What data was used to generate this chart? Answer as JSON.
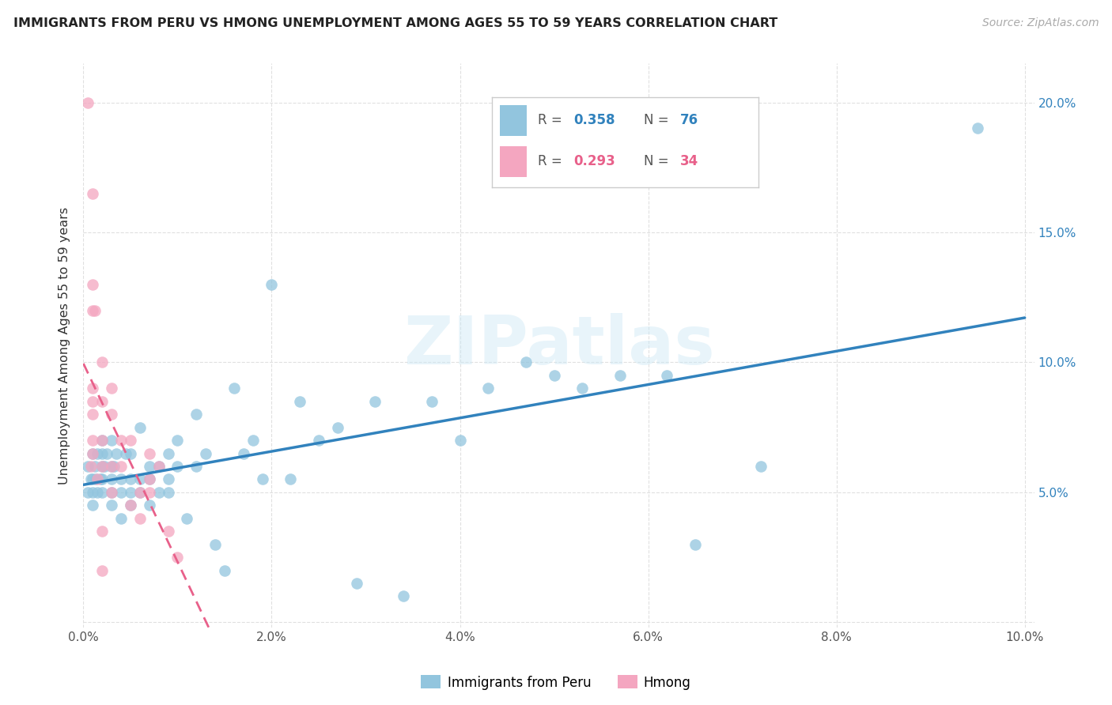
{
  "title": "IMMIGRANTS FROM PERU VS HMONG UNEMPLOYMENT AMONG AGES 55 TO 59 YEARS CORRELATION CHART",
  "source": "Source: ZipAtlas.com",
  "ylabel": "Unemployment Among Ages 55 to 59 years",
  "xlim": [
    0.0,
    0.101
  ],
  "ylim": [
    -0.002,
    0.215
  ],
  "xticks": [
    0.0,
    0.02,
    0.04,
    0.06,
    0.08,
    0.1
  ],
  "yticks": [
    0.0,
    0.05,
    0.1,
    0.15,
    0.2
  ],
  "xtick_labels": [
    "0.0%",
    "2.0%",
    "4.0%",
    "6.0%",
    "8.0%",
    "10.0%"
  ],
  "ytick_labels_right": [
    "",
    "5.0%",
    "10.0%",
    "15.0%",
    "20.0%"
  ],
  "legend_peru_r": "R = 0.358",
  "legend_peru_n": "76",
  "legend_hmong_r": "R = 0.293",
  "legend_hmong_n": "34",
  "peru_color": "#92c5de",
  "hmong_color": "#f4a6c0",
  "peru_line_color": "#3182bd",
  "hmong_line_color": "#e8608a",
  "watermark": "ZIPatlas",
  "peru_x": [
    0.0005,
    0.0005,
    0.0008,
    0.001,
    0.001,
    0.001,
    0.001,
    0.0012,
    0.0013,
    0.0015,
    0.0015,
    0.0018,
    0.002,
    0.002,
    0.002,
    0.002,
    0.002,
    0.0022,
    0.0025,
    0.003,
    0.003,
    0.003,
    0.003,
    0.003,
    0.0032,
    0.0035,
    0.004,
    0.004,
    0.004,
    0.0045,
    0.005,
    0.005,
    0.005,
    0.005,
    0.006,
    0.006,
    0.006,
    0.007,
    0.007,
    0.007,
    0.008,
    0.008,
    0.009,
    0.009,
    0.009,
    0.01,
    0.01,
    0.011,
    0.012,
    0.012,
    0.013,
    0.014,
    0.015,
    0.016,
    0.017,
    0.018,
    0.019,
    0.02,
    0.022,
    0.023,
    0.025,
    0.027,
    0.029,
    0.031,
    0.034,
    0.037,
    0.04,
    0.043,
    0.047,
    0.05,
    0.053,
    0.057,
    0.062,
    0.065,
    0.072,
    0.095
  ],
  "peru_y": [
    0.05,
    0.06,
    0.055,
    0.065,
    0.055,
    0.05,
    0.045,
    0.06,
    0.055,
    0.05,
    0.065,
    0.055,
    0.05,
    0.055,
    0.06,
    0.065,
    0.07,
    0.06,
    0.065,
    0.045,
    0.05,
    0.055,
    0.06,
    0.07,
    0.06,
    0.065,
    0.04,
    0.05,
    0.055,
    0.065,
    0.045,
    0.05,
    0.055,
    0.065,
    0.05,
    0.055,
    0.075,
    0.045,
    0.055,
    0.06,
    0.05,
    0.06,
    0.05,
    0.055,
    0.065,
    0.06,
    0.07,
    0.04,
    0.06,
    0.08,
    0.065,
    0.03,
    0.02,
    0.09,
    0.065,
    0.07,
    0.055,
    0.13,
    0.055,
    0.085,
    0.07,
    0.075,
    0.015,
    0.085,
    0.01,
    0.085,
    0.07,
    0.09,
    0.1,
    0.095,
    0.09,
    0.095,
    0.095,
    0.03,
    0.06,
    0.19
  ],
  "hmong_x": [
    0.0005,
    0.0008,
    0.001,
    0.001,
    0.001,
    0.001,
    0.001,
    0.001,
    0.001,
    0.001,
    0.0012,
    0.0015,
    0.002,
    0.002,
    0.002,
    0.002,
    0.002,
    0.002,
    0.003,
    0.003,
    0.003,
    0.003,
    0.004,
    0.004,
    0.005,
    0.005,
    0.006,
    0.006,
    0.007,
    0.007,
    0.007,
    0.008,
    0.009,
    0.01
  ],
  "hmong_y": [
    0.2,
    0.06,
    0.165,
    0.13,
    0.12,
    0.09,
    0.085,
    0.08,
    0.07,
    0.065,
    0.12,
    0.055,
    0.1,
    0.085,
    0.07,
    0.06,
    0.035,
    0.02,
    0.09,
    0.08,
    0.06,
    0.05,
    0.07,
    0.06,
    0.07,
    0.045,
    0.05,
    0.04,
    0.065,
    0.055,
    0.05,
    0.06,
    0.035,
    0.025
  ],
  "background_color": "#ffffff",
  "grid_color": "#e0e0e0"
}
